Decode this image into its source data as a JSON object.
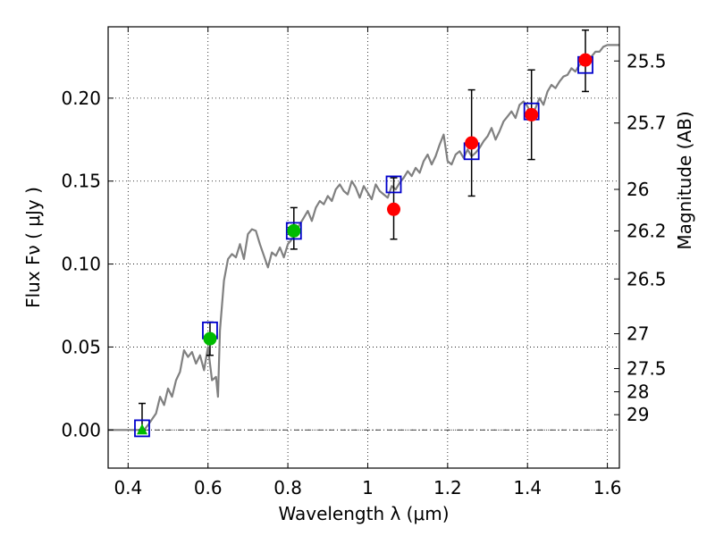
{
  "chart_data": {
    "type": "scatter",
    "xlabel": "Wavelength  λ (μm)",
    "ylabel_left": "Flux  Fν  ( μJy )",
    "ylabel_right": "Magnitude (AB)",
    "xlim": [
      0.35,
      1.63
    ],
    "ylim": [
      -0.023,
      0.243
    ],
    "x_ticks": [
      {
        "value": 0.4,
        "label": "0.4"
      },
      {
        "value": 0.6,
        "label": "0.6"
      },
      {
        "value": 0.8,
        "label": "0.8"
      },
      {
        "value": 1.0,
        "label": "1"
      },
      {
        "value": 1.2,
        "label": "1.2"
      },
      {
        "value": 1.4,
        "label": "1.4"
      },
      {
        "value": 1.6,
        "label": "1.6"
      }
    ],
    "y_ticks": [
      {
        "value": 0.0,
        "label": "0.00"
      },
      {
        "value": 0.05,
        "label": "0.05"
      },
      {
        "value": 0.1,
        "label": "0.10"
      },
      {
        "value": 0.15,
        "label": "0.15"
      },
      {
        "value": 0.2,
        "label": "0.20"
      }
    ],
    "mag_ticks": [
      {
        "flux": 0.2224,
        "label": "25.5"
      },
      {
        "flux": 0.185,
        "label": "25.7"
      },
      {
        "flux": 0.145,
        "label": "26"
      },
      {
        "flux": 0.12,
        "label": "26.2"
      },
      {
        "flux": 0.091,
        "label": "26.5"
      },
      {
        "flux": 0.058,
        "label": "27"
      },
      {
        "flux": 0.037,
        "label": "27.5"
      },
      {
        "flux": 0.023,
        "label": "28"
      },
      {
        "flux": 0.0092,
        "label": "29"
      }
    ],
    "grid": true,
    "zero_line": true,
    "sed_color": "#808080",
    "sed_curve": [
      [
        0.35,
        0.0
      ],
      [
        0.44,
        0.0
      ],
      [
        0.45,
        0.003
      ],
      [
        0.47,
        0.01
      ],
      [
        0.48,
        0.02
      ],
      [
        0.49,
        0.015
      ],
      [
        0.5,
        0.025
      ],
      [
        0.51,
        0.02
      ],
      [
        0.52,
        0.03
      ],
      [
        0.53,
        0.035
      ],
      [
        0.54,
        0.048
      ],
      [
        0.55,
        0.044
      ],
      [
        0.56,
        0.047
      ],
      [
        0.57,
        0.04
      ],
      [
        0.58,
        0.045
      ],
      [
        0.59,
        0.036
      ],
      [
        0.6,
        0.05
      ],
      [
        0.61,
        0.03
      ],
      [
        0.62,
        0.032
      ],
      [
        0.625,
        0.02
      ],
      [
        0.63,
        0.06
      ],
      [
        0.64,
        0.09
      ],
      [
        0.65,
        0.103
      ],
      [
        0.66,
        0.106
      ],
      [
        0.67,
        0.104
      ],
      [
        0.68,
        0.112
      ],
      [
        0.69,
        0.103
      ],
      [
        0.7,
        0.118
      ],
      [
        0.71,
        0.121
      ],
      [
        0.72,
        0.12
      ],
      [
        0.73,
        0.112
      ],
      [
        0.74,
        0.105
      ],
      [
        0.75,
        0.098
      ],
      [
        0.76,
        0.107
      ],
      [
        0.77,
        0.105
      ],
      [
        0.78,
        0.11
      ],
      [
        0.79,
        0.104
      ],
      [
        0.8,
        0.112
      ],
      [
        0.81,
        0.115
      ],
      [
        0.82,
        0.119
      ],
      [
        0.83,
        0.124
      ],
      [
        0.84,
        0.128
      ],
      [
        0.85,
        0.132
      ],
      [
        0.86,
        0.126
      ],
      [
        0.87,
        0.134
      ],
      [
        0.88,
        0.138
      ],
      [
        0.89,
        0.136
      ],
      [
        0.9,
        0.141
      ],
      [
        0.91,
        0.138
      ],
      [
        0.92,
        0.145
      ],
      [
        0.93,
        0.148
      ],
      [
        0.94,
        0.144
      ],
      [
        0.95,
        0.142
      ],
      [
        0.96,
        0.15
      ],
      [
        0.97,
        0.146
      ],
      [
        0.98,
        0.14
      ],
      [
        0.99,
        0.147
      ],
      [
        1.0,
        0.143
      ],
      [
        1.01,
        0.139
      ],
      [
        1.02,
        0.148
      ],
      [
        1.03,
        0.144
      ],
      [
        1.04,
        0.142
      ],
      [
        1.05,
        0.14
      ],
      [
        1.06,
        0.147
      ],
      [
        1.07,
        0.145
      ],
      [
        1.08,
        0.149
      ],
      [
        1.09,
        0.152
      ],
      [
        1.1,
        0.156
      ],
      [
        1.11,
        0.153
      ],
      [
        1.12,
        0.158
      ],
      [
        1.13,
        0.155
      ],
      [
        1.14,
        0.162
      ],
      [
        1.15,
        0.166
      ],
      [
        1.16,
        0.16
      ],
      [
        1.17,
        0.165
      ],
      [
        1.18,
        0.172
      ],
      [
        1.19,
        0.178
      ],
      [
        1.2,
        0.162
      ],
      [
        1.21,
        0.16
      ],
      [
        1.22,
        0.166
      ],
      [
        1.23,
        0.168
      ],
      [
        1.24,
        0.164
      ],
      [
        1.25,
        0.169
      ],
      [
        1.26,
        0.165
      ],
      [
        1.27,
        0.167
      ],
      [
        1.28,
        0.17
      ],
      [
        1.29,
        0.174
      ],
      [
        1.3,
        0.177
      ],
      [
        1.31,
        0.182
      ],
      [
        1.32,
        0.175
      ],
      [
        1.33,
        0.18
      ],
      [
        1.34,
        0.186
      ],
      [
        1.35,
        0.189
      ],
      [
        1.36,
        0.192
      ],
      [
        1.37,
        0.188
      ],
      [
        1.38,
        0.196
      ],
      [
        1.39,
        0.198
      ],
      [
        1.4,
        0.195
      ],
      [
        1.41,
        0.19
      ],
      [
        1.42,
        0.194
      ],
      [
        1.43,
        0.2
      ],
      [
        1.44,
        0.196
      ],
      [
        1.45,
        0.204
      ],
      [
        1.46,
        0.208
      ],
      [
        1.47,
        0.206
      ],
      [
        1.48,
        0.21
      ],
      [
        1.49,
        0.213
      ],
      [
        1.5,
        0.214
      ],
      [
        1.51,
        0.218
      ],
      [
        1.52,
        0.216
      ],
      [
        1.53,
        0.22
      ],
      [
        1.54,
        0.221
      ],
      [
        1.55,
        0.222
      ],
      [
        1.56,
        0.225
      ],
      [
        1.57,
        0.228
      ],
      [
        1.58,
        0.228
      ],
      [
        1.59,
        0.231
      ],
      [
        1.6,
        0.232
      ],
      [
        1.61,
        0.232
      ],
      [
        1.63,
        0.232
      ]
    ],
    "model_boxes": {
      "color": "#0000cc",
      "points": [
        {
          "x": 0.435,
          "y": 0.001
        },
        {
          "x": 0.605,
          "y": 0.06
        },
        {
          "x": 0.815,
          "y": 0.12
        },
        {
          "x": 1.065,
          "y": 0.148
        },
        {
          "x": 1.26,
          "y": 0.168
        },
        {
          "x": 1.41,
          "y": 0.192
        },
        {
          "x": 1.545,
          "y": 0.22
        }
      ]
    },
    "observed_green": {
      "color": "#00bb00",
      "points": [
        {
          "x": 0.605,
          "y": 0.055,
          "lo": 0.045,
          "hi": 0.065
        },
        {
          "x": 0.815,
          "y": 0.12,
          "lo": 0.109,
          "hi": 0.134
        }
      ]
    },
    "observed_red": {
      "color": "#ff0000",
      "points": [
        {
          "x": 1.065,
          "y": 0.133,
          "lo": 0.115,
          "hi": 0.152
        },
        {
          "x": 1.26,
          "y": 0.173,
          "lo": 0.141,
          "hi": 0.205
        },
        {
          "x": 1.41,
          "y": 0.19,
          "lo": 0.163,
          "hi": 0.217
        },
        {
          "x": 1.545,
          "y": 0.223,
          "lo": 0.204,
          "hi": 0.241
        }
      ]
    },
    "upper_limit": {
      "color": "#00bb00",
      "x": 0.435,
      "y": 0.0,
      "hi": 0.016
    }
  }
}
